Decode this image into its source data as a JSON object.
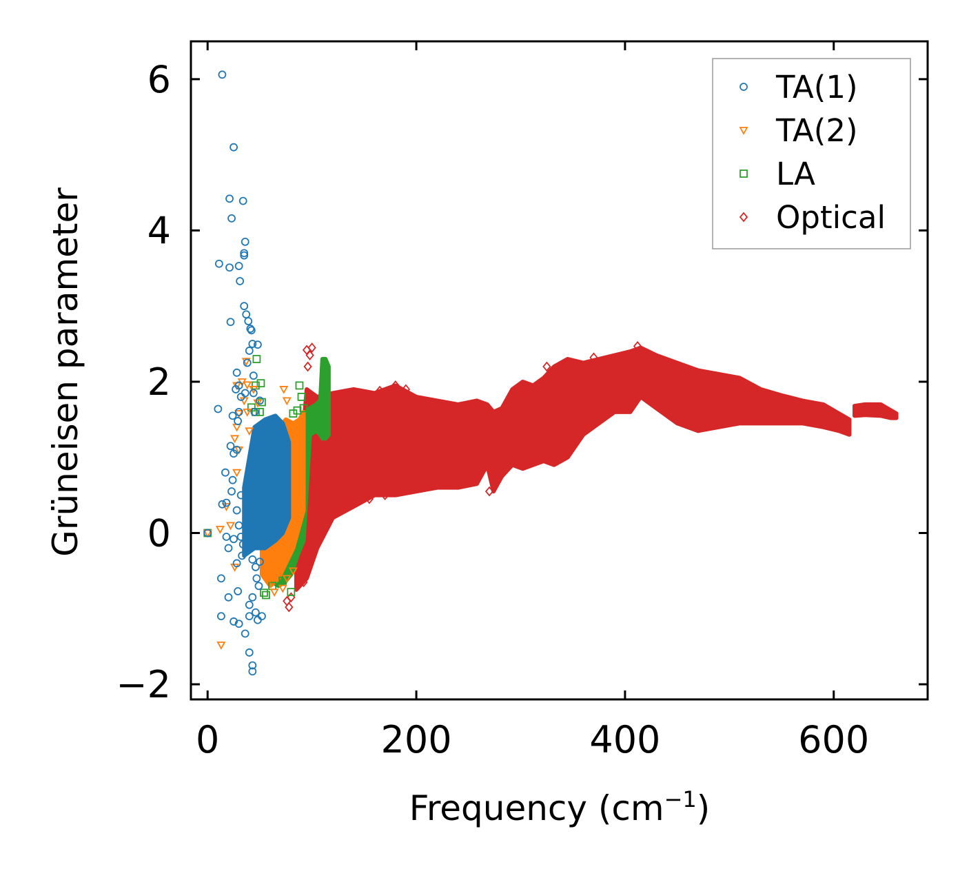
{
  "chart_data": {
    "type": "scatter",
    "title": "",
    "xlabel": "Frequency (cm",
    "xlabel_sup": "−1",
    "xlabel_close": ")",
    "ylabel": "Grüneisen parameter",
    "xlim": [
      -16,
      690
    ],
    "ylim": [
      -2.2,
      6.5
    ],
    "xticks": [
      0,
      200,
      400,
      600
    ],
    "xtick_labels": [
      "0",
      "200",
      "400",
      "600"
    ],
    "yticks": [
      -2,
      0,
      2,
      4,
      6
    ],
    "ytick_labels": [
      "−2",
      "0",
      "2",
      "4",
      "6"
    ],
    "legend_position": "top-right",
    "series": [
      {
        "name": "TA(1)",
        "color": "#1f77b4",
        "marker": "circle",
        "points": [
          [
            0,
            0
          ],
          [
            14,
            6.06
          ],
          [
            25,
            5.1
          ],
          [
            21,
            4.42
          ],
          [
            34,
            4.39
          ],
          [
            23,
            4.16
          ],
          [
            36,
            3.85
          ],
          [
            35,
            3.7
          ],
          [
            35,
            3.67
          ],
          [
            11,
            3.56
          ],
          [
            21,
            3.51
          ],
          [
            30,
            3.53
          ],
          [
            31,
            3.33
          ],
          [
            35,
            3.0
          ],
          [
            37,
            2.89
          ],
          [
            22,
            2.79
          ],
          [
            39,
            2.8
          ],
          [
            41,
            2.7
          ],
          [
            42,
            2.68
          ],
          [
            43,
            2.5
          ],
          [
            48,
            2.49
          ],
          [
            40,
            2.41
          ],
          [
            28,
            2.12
          ],
          [
            44,
            2.08
          ],
          [
            38,
            2.25
          ],
          [
            30,
            1.95
          ],
          [
            27,
            1.9
          ],
          [
            36,
            1.85
          ],
          [
            32,
            1.8
          ],
          [
            10,
            1.64
          ],
          [
            24,
            1.55
          ],
          [
            30,
            1.6
          ],
          [
            29,
            1.48
          ],
          [
            44,
            1.85
          ],
          [
            50,
            1.75
          ],
          [
            45,
            1.6
          ],
          [
            22,
            1.15
          ],
          [
            28,
            1.1
          ],
          [
            25,
            1.05
          ],
          [
            17,
            0.8
          ],
          [
            24,
            0.7
          ],
          [
            23,
            0.55
          ],
          [
            14,
            0.38
          ],
          [
            18,
            0.4
          ],
          [
            32,
            0.5
          ],
          [
            28,
            0.3
          ],
          [
            30,
            0.1
          ],
          [
            32,
            -0.05
          ],
          [
            18,
            -0.05
          ],
          [
            25,
            -0.08
          ],
          [
            20,
            -0.2
          ],
          [
            34,
            -0.15
          ],
          [
            33,
            -0.3
          ],
          [
            28,
            -0.4
          ],
          [
            43,
            -0.35
          ],
          [
            46,
            -0.45
          ],
          [
            50,
            -0.38
          ],
          [
            47,
            -0.6
          ],
          [
            49,
            -0.7
          ],
          [
            13,
            -0.6
          ],
          [
            20,
            -0.85
          ],
          [
            29,
            -0.77
          ],
          [
            40,
            -0.95
          ],
          [
            43,
            -0.85
          ],
          [
            46,
            -1.05
          ],
          [
            40,
            -1.1
          ],
          [
            52,
            -1.1
          ],
          [
            13,
            -1.1
          ],
          [
            25,
            -1.17
          ],
          [
            30,
            -1.2
          ],
          [
            36,
            -1.33
          ],
          [
            48,
            -1.15
          ],
          [
            40,
            -1.58
          ],
          [
            43,
            -1.75
          ],
          [
            43,
            -1.83
          ]
        ],
        "band": [
          [
            35,
            -0.3,
            0.6
          ],
          [
            45,
            -0.2,
            1.4
          ],
          [
            55,
            -0.2,
            1.5
          ],
          [
            65,
            -0.1,
            1.55
          ],
          [
            72,
            0.0,
            1.45
          ],
          [
            78,
            0.2,
            1.2
          ]
        ]
      },
      {
        "name": "TA(2)",
        "color": "#ff7f0e",
        "marker": "triangle-down",
        "points": [
          [
            0,
            0
          ],
          [
            13,
            -1.48
          ],
          [
            26,
            -0.45
          ],
          [
            12,
            0.05
          ],
          [
            18,
            0.35
          ],
          [
            22,
            0.1
          ],
          [
            28,
            0.8
          ],
          [
            30,
            1.1
          ],
          [
            26,
            1.25
          ],
          [
            28,
            1.4
          ],
          [
            28,
            1.95
          ],
          [
            33,
            2.0
          ],
          [
            37,
            2.27
          ],
          [
            38,
            1.96
          ],
          [
            35,
            1.75
          ],
          [
            30,
            1.58
          ],
          [
            38,
            1.6
          ],
          [
            44,
            1.9
          ],
          [
            48,
            1.72
          ],
          [
            40,
            1.35
          ],
          [
            60,
            -0.6
          ],
          [
            64,
            -0.78
          ],
          [
            72,
            -0.73
          ],
          [
            76,
            -0.6
          ],
          [
            82,
            -0.5
          ],
          [
            73,
            1.9
          ],
          [
            76,
            1.75
          ]
        ],
        "band": [
          [
            52,
            -0.55,
            0.9
          ],
          [
            60,
            -0.7,
            1.2
          ],
          [
            68,
            -0.6,
            1.4
          ],
          [
            75,
            -0.4,
            1.5
          ],
          [
            82,
            -0.2,
            1.45
          ],
          [
            88,
            0.1,
            1.5
          ],
          [
            92,
            0.3,
            1.6
          ]
        ]
      },
      {
        "name": "LA",
        "color": "#2ca02c",
        "marker": "square",
        "points": [
          [
            0,
            0
          ],
          [
            47,
            2.3
          ],
          [
            51,
            1.98
          ],
          [
            46,
            1.95
          ],
          [
            42,
            1.66
          ],
          [
            46,
            1.6
          ],
          [
            50,
            1.6
          ],
          [
            52,
            1.73
          ],
          [
            54,
            -0.79
          ],
          [
            56,
            -0.82
          ],
          [
            62,
            -0.7
          ],
          [
            72,
            -0.63
          ],
          [
            80,
            -0.78
          ],
          [
            88,
            1.95
          ],
          [
            90,
            1.8
          ],
          [
            92,
            1.65
          ],
          [
            86,
            1.62
          ],
          [
            82,
            1.58
          ],
          [
            98,
            1.6
          ],
          [
            104,
            1.55
          ]
        ],
        "band": [
          [
            62,
            -0.65,
            -0.2
          ],
          [
            68,
            -0.7,
            -0.25
          ],
          [
            74,
            -0.65,
            -0.15
          ],
          [
            80,
            -0.55,
            0.0
          ],
          [
            86,
            -0.3,
            1.4
          ],
          [
            92,
            -0.1,
            1.55
          ],
          [
            98,
            1.3,
            1.65
          ],
          [
            104,
            1.35,
            1.7
          ],
          [
            108,
            1.3,
            1.75
          ],
          [
            110,
            1.25,
            2.3
          ],
          [
            113,
            1.25,
            2.3
          ],
          [
            116,
            1.3,
            2.2
          ]
        ]
      },
      {
        "name": "Optical",
        "color": "#d62728",
        "marker": "diamond",
        "points": [
          [
            76,
            -0.9
          ],
          [
            78,
            -0.98
          ],
          [
            80,
            -0.85
          ],
          [
            92,
            -0.65
          ],
          [
            95,
            2.42
          ],
          [
            98,
            2.35
          ],
          [
            100,
            2.45
          ],
          [
            96,
            2.2
          ],
          [
            125,
            0.3
          ],
          [
            135,
            0.4
          ],
          [
            155,
            0.45
          ],
          [
            170,
            0.5
          ],
          [
            190,
            1.9
          ],
          [
            180,
            1.95
          ],
          [
            165,
            1.88
          ],
          [
            270,
            0.55
          ],
          [
            300,
            1.9
          ],
          [
            325,
            2.2
          ],
          [
            370,
            2.32
          ],
          [
            412,
            2.47
          ]
        ],
        "band": [
          [
            85,
            -0.75,
            0.3
          ],
          [
            95,
            -0.6,
            1.9
          ],
          [
            105,
            -0.2,
            1.8
          ],
          [
            120,
            0.2,
            1.85
          ],
          [
            140,
            0.35,
            1.9
          ],
          [
            160,
            0.5,
            1.85
          ],
          [
            180,
            0.5,
            1.95
          ],
          [
            200,
            0.55,
            1.8
          ],
          [
            220,
            0.6,
            1.75
          ],
          [
            240,
            0.6,
            1.7
          ],
          [
            258,
            0.65,
            1.75
          ],
          [
            268,
            0.9,
            1.7
          ],
          [
            274,
            0.55,
            1.6
          ],
          [
            282,
            0.75,
            1.65
          ],
          [
            292,
            0.9,
            1.9
          ],
          [
            302,
            0.85,
            2.0
          ],
          [
            312,
            0.9,
            1.95
          ],
          [
            322,
            0.95,
            2.05
          ],
          [
            332,
            0.9,
            2.2
          ],
          [
            345,
            1.0,
            2.3
          ],
          [
            360,
            1.3,
            2.25
          ],
          [
            375,
            1.45,
            2.3
          ],
          [
            390,
            1.6,
            2.35
          ],
          [
            405,
            1.6,
            2.4
          ],
          [
            415,
            1.8,
            2.45
          ],
          [
            430,
            1.65,
            2.35
          ],
          [
            450,
            1.45,
            2.25
          ],
          [
            470,
            1.35,
            2.15
          ],
          [
            490,
            1.4,
            2.1
          ],
          [
            510,
            1.45,
            2.05
          ],
          [
            530,
            1.45,
            1.9
          ],
          [
            550,
            1.45,
            1.82
          ],
          [
            570,
            1.45,
            1.75
          ],
          [
            590,
            1.4,
            1.7
          ],
          [
            605,
            1.35,
            1.58
          ],
          [
            615,
            1.3,
            1.5
          ]
        ],
        "band2": [
          [
            620,
            1.55,
            1.68
          ],
          [
            630,
            1.56,
            1.7
          ],
          [
            645,
            1.55,
            1.7
          ],
          [
            655,
            1.52,
            1.62
          ],
          [
            660,
            1.52,
            1.58
          ]
        ]
      }
    ]
  }
}
